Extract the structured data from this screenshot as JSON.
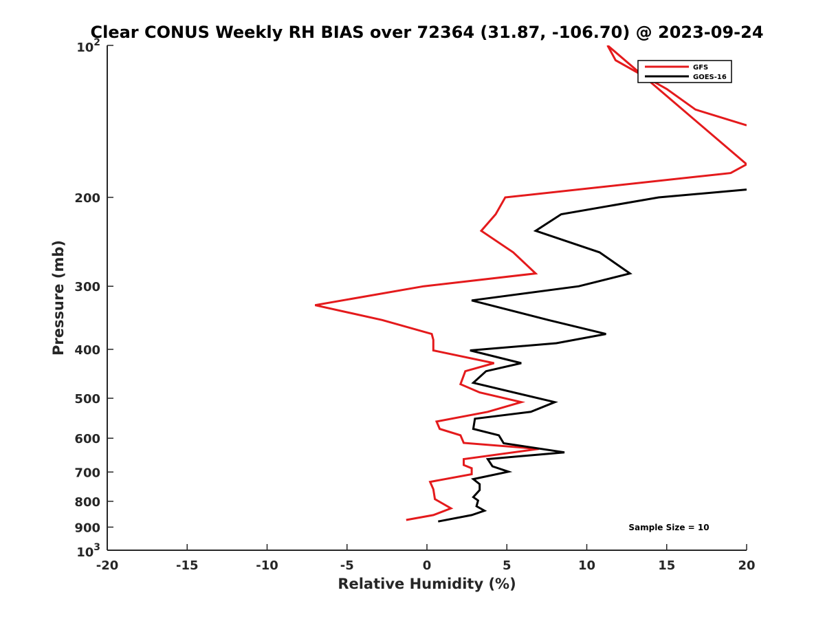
{
  "chart_data": {
    "type": "line",
    "title": "Clear CONUS Weekly RH BIAS over 72364 (31.87, -106.70) @ 2023-09-24",
    "xlabel": "Relative Humidity (%)",
    "ylabel": "Pressure (mb)",
    "xlim": [
      -20,
      20
    ],
    "ylim": [
      1000,
      100
    ],
    "y_scale": "log",
    "x_ticks": [
      -20,
      -15,
      -10,
      -5,
      0,
      5,
      10,
      15,
      20
    ],
    "x_tick_labels": [
      "-20",
      "-15",
      "-10",
      "-5",
      "0",
      "5",
      "10",
      "15",
      "20"
    ],
    "y_ticks": [
      {
        "value": 100,
        "base": "10",
        "exp": "2",
        "label": ""
      },
      {
        "value": 200,
        "label": "200"
      },
      {
        "value": 300,
        "label": "300"
      },
      {
        "value": 400,
        "label": "400"
      },
      {
        "value": 500,
        "label": "500"
      },
      {
        "value": 600,
        "label": "600"
      },
      {
        "value": 700,
        "label": "700"
      },
      {
        "value": 800,
        "label": "800"
      },
      {
        "value": 900,
        "label": "900"
      },
      {
        "value": 1000,
        "base": "10",
        "exp": "3",
        "label": ""
      }
    ],
    "legend_position": "top-right",
    "annotation": "Sample Size = 10",
    "series": [
      {
        "name": "GFS",
        "color": "#e41a1c",
        "points": [
          [
            20,
            144
          ],
          [
            16.8,
            134
          ],
          [
            15.0,
            122
          ],
          [
            11.8,
            107
          ],
          [
            11.3,
            100
          ],
          [
            20,
            172
          ],
          [
            19.0,
            179
          ],
          [
            4.9,
            200
          ],
          [
            4.3,
            216
          ],
          [
            3.4,
            233
          ],
          [
            5.4,
            257
          ],
          [
            6.8,
            283
          ],
          [
            -0.2,
            300
          ],
          [
            -7.0,
            327
          ],
          [
            -2.8,
            350
          ],
          [
            0.3,
            373
          ],
          [
            0.4,
            383
          ],
          [
            0.4,
            402
          ],
          [
            4.2,
            426
          ],
          [
            2.4,
            442
          ],
          [
            2.1,
            469
          ],
          [
            3.3,
            487
          ],
          [
            5.9,
            509
          ],
          [
            3.8,
            532
          ],
          [
            0.6,
            556
          ],
          [
            0.8,
            575
          ],
          [
            2.1,
            592
          ],
          [
            2.3,
            613
          ],
          [
            7.0,
            630
          ],
          [
            2.3,
            660
          ],
          [
            2.3,
            678
          ],
          [
            2.8,
            688
          ],
          [
            2.8,
            707
          ],
          [
            0.2,
            732
          ],
          [
            0.4,
            757
          ],
          [
            0.5,
            792
          ],
          [
            1.5,
            826
          ],
          [
            0.4,
            852
          ],
          [
            -1.3,
            871
          ]
        ]
      },
      {
        "name": "GOES-16",
        "color": "#000000",
        "points": [
          [
            20,
            193
          ],
          [
            14.5,
            200
          ],
          [
            8.4,
            216
          ],
          [
            6.8,
            233
          ],
          [
            10.8,
            257
          ],
          [
            12.7,
            283
          ],
          [
            9.5,
            300
          ],
          [
            2.8,
            320
          ],
          [
            7.6,
            350
          ],
          [
            11.2,
            373
          ],
          [
            8.1,
            389
          ],
          [
            2.7,
            402
          ],
          [
            5.9,
            426
          ],
          [
            3.7,
            442
          ],
          [
            2.9,
            466
          ],
          [
            8.0,
            509
          ],
          [
            6.5,
            532
          ],
          [
            3.0,
            549
          ],
          [
            2.9,
            575
          ],
          [
            4.5,
            592
          ],
          [
            4.8,
            614
          ],
          [
            8.6,
            640
          ],
          [
            3.8,
            660
          ],
          [
            4.1,
            682
          ],
          [
            5.1,
            699
          ],
          [
            2.9,
            723
          ],
          [
            3.3,
            740
          ],
          [
            3.3,
            760
          ],
          [
            2.9,
            785
          ],
          [
            3.2,
            797
          ],
          [
            3.1,
            818
          ],
          [
            3.6,
            835
          ],
          [
            2.8,
            852
          ],
          [
            0.7,
            877
          ]
        ]
      }
    ]
  }
}
